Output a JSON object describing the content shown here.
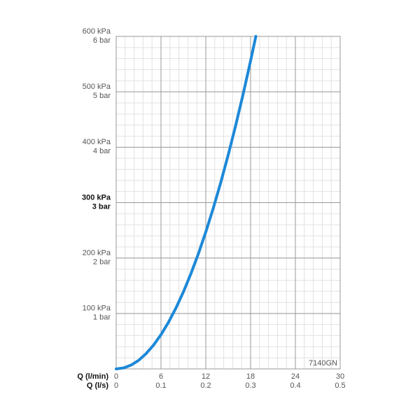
{
  "chart_data": {
    "type": "line",
    "x_label": "Q (l/min)",
    "x2_label": "Q (l/s)",
    "annotation": "7140GN",
    "x": [
      0,
      1,
      2,
      3,
      4,
      5,
      6,
      7,
      8,
      9,
      10,
      11,
      12,
      13,
      14,
      15,
      16,
      17,
      18,
      18.7
    ],
    "series": [
      {
        "color": "#1c88d8",
        "values": [
          0,
          1.7,
          6.9,
          15.4,
          27.5,
          42.9,
          61.8,
          84.1,
          109.8,
          139,
          171.6,
          207.6,
          247.1,
          290,
          336.3,
          386.1,
          439.3,
          495.9,
          556,
          600
        ]
      }
    ],
    "xlim": [
      0,
      30
    ],
    "xticks": [
      0,
      6,
      12,
      18,
      24,
      30
    ],
    "x2lim": [
      0,
      0.5
    ],
    "x2ticks": [
      0,
      0.1,
      0.2,
      0.3,
      0.4,
      0.5
    ],
    "ylim": [
      0,
      600
    ],
    "yticks": [
      {
        "value": 100,
        "label": "100 kPa"
      },
      {
        "value": 200,
        "label": "200 kPa"
      },
      {
        "value": 300,
        "label": "300 kPa"
      },
      {
        "value": 400,
        "label": "400 kPa"
      },
      {
        "value": 500,
        "label": "500 kPa"
      },
      {
        "value": 600,
        "label": "600 kPa"
      }
    ],
    "y2lim": [
      0,
      6
    ],
    "y2ticks": [
      {
        "value": 1,
        "label": "1 bar"
      },
      {
        "value": 2,
        "label": "2 bar"
      },
      {
        "value": 3,
        "label": "3 bar"
      },
      {
        "value": 4,
        "label": "4 bar"
      },
      {
        "value": 5,
        "label": "5 bar"
      },
      {
        "value": 6,
        "label": "6 bar"
      }
    ],
    "highlight_ytick": 300,
    "grid": true,
    "x_minor_step": 1.2,
    "y_minor_step": 20
  }
}
